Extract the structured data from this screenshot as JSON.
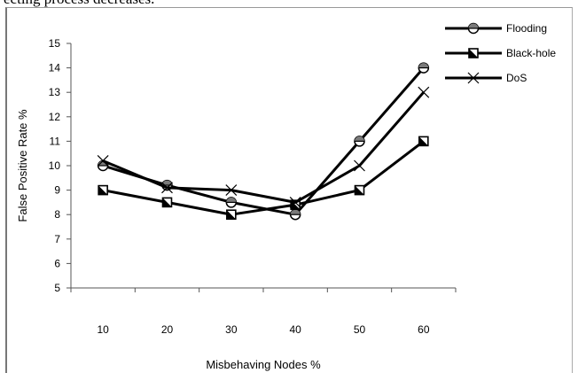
{
  "page": {
    "top_text": "ecting process decreases."
  },
  "chart_data": {
    "type": "line",
    "title": "",
    "xlabel": "Misbehaving Nodes %",
    "ylabel": "False Positive Rate %",
    "categories": [
      "10",
      "20",
      "30",
      "40",
      "50",
      "60"
    ],
    "ylim": [
      5,
      15
    ],
    "yticks": [
      5,
      6,
      7,
      8,
      9,
      10,
      11,
      12,
      13,
      14,
      15
    ],
    "grid": false,
    "legend_position": "top-right",
    "series": [
      {
        "name": "Flooding",
        "values": [
          10.0,
          9.2,
          8.5,
          8.0,
          11.0,
          14.0
        ],
        "marker": "circle-half",
        "color": "#000000"
      },
      {
        "name": "Black-hole",
        "values": [
          9.0,
          8.5,
          8.0,
          8.4,
          9.0,
          11.0
        ],
        "marker": "square-half",
        "color": "#000000"
      },
      {
        "name": "DoS",
        "values": [
          10.2,
          9.1,
          9.0,
          8.5,
          10.0,
          13.0
        ],
        "marker": "cross",
        "color": "#000000"
      }
    ]
  }
}
